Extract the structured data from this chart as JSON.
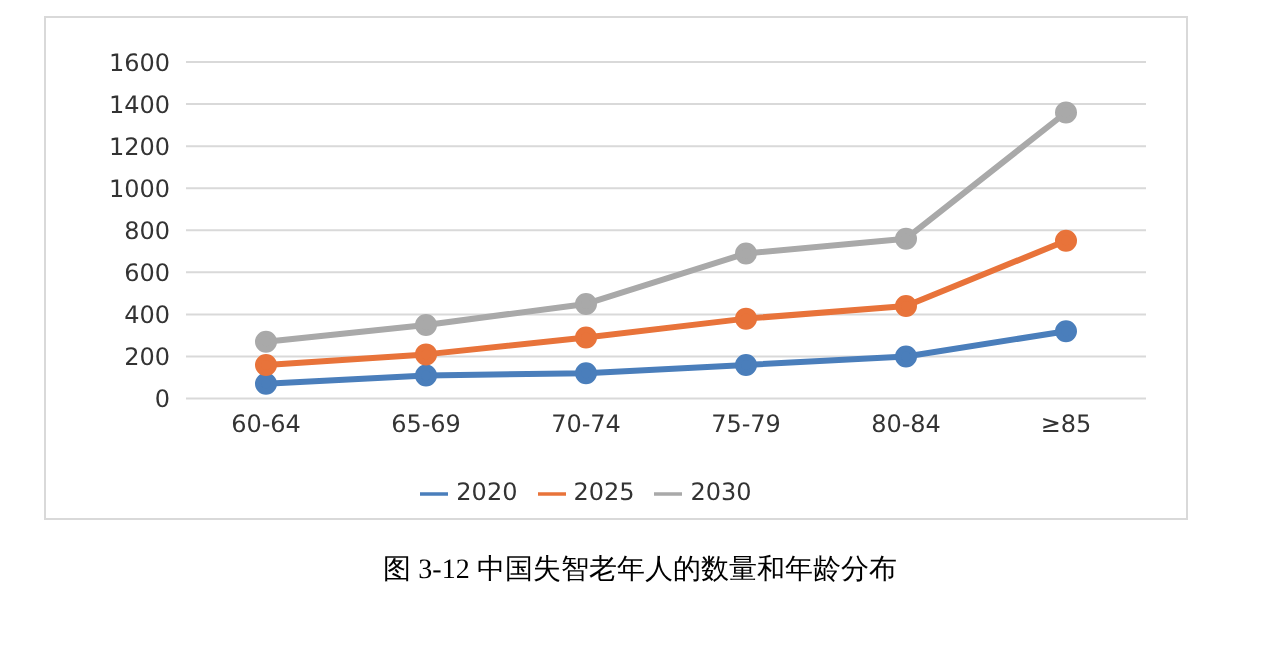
{
  "chart_data": {
    "type": "line",
    "categories": [
      "60-64",
      "65-69",
      "70-74",
      "75-79",
      "80-84",
      "≥85"
    ],
    "series": [
      {
        "name": "2020",
        "color": "#4a7ebb",
        "values": [
          70,
          110,
          120,
          160,
          200,
          320
        ]
      },
      {
        "name": "2025",
        "color": "#e8733a",
        "values": [
          160,
          210,
          290,
          380,
          440,
          750
        ]
      },
      {
        "name": "2030",
        "color": "#a9a9a9",
        "values": [
          270,
          350,
          450,
          690,
          760,
          1360
        ]
      }
    ],
    "ylim": [
      0,
      1600
    ],
    "yticks": [
      0,
      200,
      400,
      600,
      800,
      1000,
      1200,
      1400,
      1600
    ],
    "grid": "y",
    "legend": "bottom",
    "marker": "circle",
    "line_style": "solid",
    "annotations": [
      "图 3-12  中国失智老年人的数量和年龄分布"
    ]
  }
}
